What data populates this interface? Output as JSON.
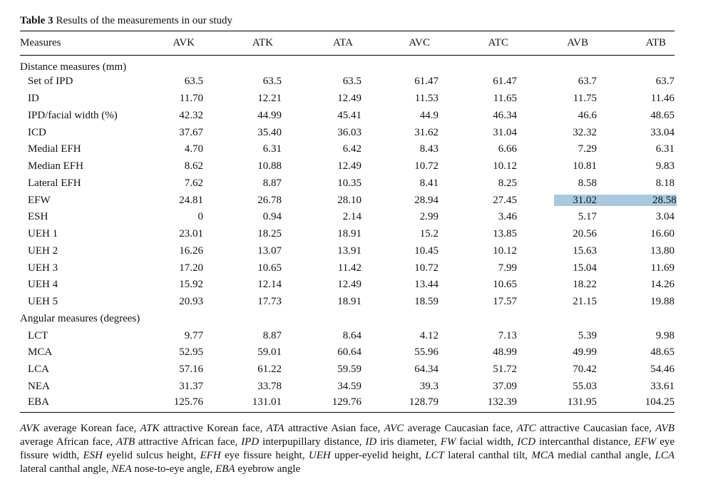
{
  "caption": {
    "label": "Table 3",
    "text": "Results of the measurements in our study"
  },
  "table": {
    "headers": [
      "Measures",
      "AVK",
      "ATK",
      "ATA",
      "AVC",
      "ATC",
      "AVB",
      "ATB"
    ],
    "sections": [
      {
        "title": "Distance measures (mm)",
        "rows": [
          [
            "Set of IPD",
            "63.5",
            "63.5",
            "63.5",
            "61.47",
            "61.47",
            "63.7",
            "63.7"
          ],
          [
            "ID",
            "11.70",
            "12.21",
            "12.49",
            "11.53",
            "11.65",
            "11.75",
            "11.46"
          ],
          [
            "IPD/facial width (%)",
            "42.32",
            "44.99",
            "45.41",
            "44.9",
            "46.34",
            "46.6",
            "48.65"
          ],
          [
            "ICD",
            "37.67",
            "35.40",
            "36.03",
            "31.62",
            "31.04",
            "32.32",
            "33.04"
          ],
          [
            "Medial EFH",
            "4.70",
            "6.31",
            "6.42",
            "8.43",
            "6.66",
            "7.29",
            "6.31"
          ],
          [
            "Median EFH",
            "8.62",
            "10.88",
            "12.49",
            "10.72",
            "10.12",
            "10.81",
            "9.83"
          ],
          [
            "Lateral EFH",
            "7.62",
            "8.87",
            "10.35",
            "8.41",
            "8.25",
            "8.58",
            "8.18"
          ],
          [
            "EFW",
            "24.81",
            "26.78",
            "28.10",
            "28.94",
            "27.45",
            "31.02",
            "28.58"
          ],
          [
            "ESH",
            "0",
            "0.94",
            "2.14",
            "2.99",
            "3.46",
            "5.17",
            "3.04"
          ],
          [
            "UEH 1",
            "23.01",
            "18.25",
            "18.91",
            "15.2",
            "13.85",
            "20.56",
            "16.60"
          ],
          [
            "UEH 2",
            "16.26",
            "13.07",
            "13.91",
            "10.45",
            "10.12",
            "15.63",
            "13.80"
          ],
          [
            "UEH 3",
            "17.20",
            "10.65",
            "11.42",
            "10.72",
            "7.99",
            "15.04",
            "11.69"
          ],
          [
            "UEH 4",
            "15.92",
            "12.14",
            "12.49",
            "13.44",
            "10.65",
            "18.22",
            "14.26"
          ],
          [
            "UEH 5",
            "20.93",
            "17.73",
            "18.91",
            "18.59",
            "17.57",
            "21.15",
            "19.88"
          ]
        ]
      },
      {
        "title": "Angular measures (degrees)",
        "rows": [
          [
            "LCT",
            "9.77",
            "8.87",
            "8.64",
            "4.12",
            "7.13",
            "5.39",
            "9.98"
          ],
          [
            "MCA",
            "52.95",
            "59.01",
            "60.64",
            "55.96",
            "48.99",
            "49.99",
            "48.65"
          ],
          [
            "LCA",
            "57.16",
            "61.22",
            "59.59",
            "64.34",
            "51.72",
            "70.42",
            "54.46"
          ],
          [
            "NEA",
            "31.37",
            "33.78",
            "34.59",
            "39.3",
            "37.09",
            "55.03",
            "33.61"
          ],
          [
            "EBA",
            "125.76",
            "131.01",
            "129.76",
            "128.79",
            "132.39",
            "131.95",
            "104.25"
          ]
        ]
      }
    ]
  },
  "footnote": [
    {
      "abbr": "AVK",
      "text": "average Korean face,"
    },
    {
      "abbr": "ATK",
      "text": "attractive Korean face,"
    },
    {
      "abbr": "ATA",
      "text": "attractive Asian face,"
    },
    {
      "abbr": "AVC",
      "text": "average Caucasian face,"
    },
    {
      "abbr": "ATC",
      "text": "attractive Caucasian face,"
    },
    {
      "abbr": "AVB",
      "text": "average African face,"
    },
    {
      "abbr": "ATB",
      "text": "attractive African face,"
    },
    {
      "abbr": "IPD",
      "text": "interpupillary distance,"
    },
    {
      "abbr": "ID",
      "text": "iris diameter,"
    },
    {
      "abbr": "FW",
      "text": "facial width,"
    },
    {
      "abbr": "ICD",
      "text": "intercanthal distance,"
    },
    {
      "abbr": "EFW",
      "text": "eye fissure width,"
    },
    {
      "abbr": "ESH",
      "text": "eyelid sulcus height,"
    },
    {
      "abbr": "EFH",
      "text": "eye fissure height,"
    },
    {
      "abbr": "UEH",
      "text": "upper-eyelid height,"
    },
    {
      "abbr": "LCT",
      "text": "lateral canthal tilt,"
    },
    {
      "abbr": "MCA",
      "text": "medial canthal angle,"
    },
    {
      "abbr": "LCA",
      "text": "lateral canthal angle,"
    },
    {
      "abbr": "NEA",
      "text": "nose-to-eye angle,"
    },
    {
      "abbr": "EBA",
      "text": "eyebrow angle"
    }
  ]
}
